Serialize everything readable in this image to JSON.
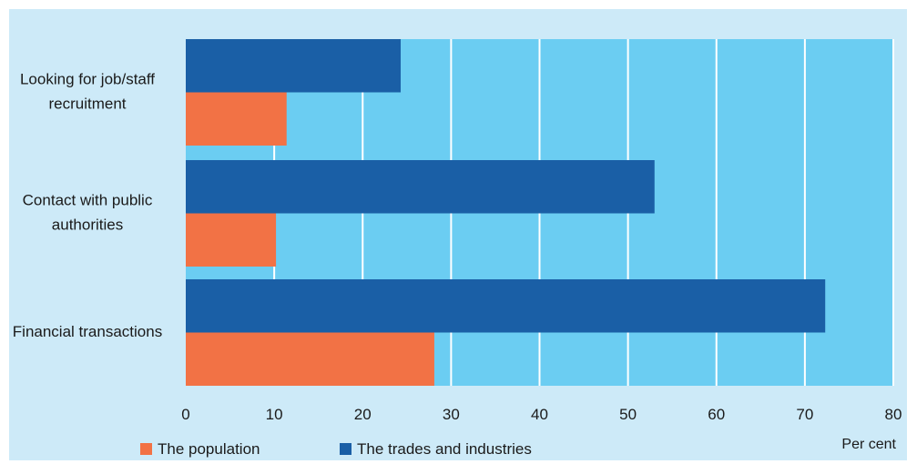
{
  "colors": {
    "outer_background": "#cdeaf8",
    "plot_background": "#6bcdf2",
    "gridline": "#ffffff",
    "population": "#f27245",
    "trades": "#1a5fa6",
    "text": "#1a1a1a"
  },
  "chart_data": {
    "type": "bar",
    "orientation": "horizontal",
    "categories": [
      "Looking for job/staff recruitment",
      "Contact with public authorities",
      "Financial transactions"
    ],
    "category_label_lines": [
      [
        "Looking for job/staff",
        "recruitment"
      ],
      [
        "Contact with public",
        "authorities"
      ],
      [
        "Financial transactions"
      ]
    ],
    "series": [
      {
        "name": "The trades and industries",
        "color": "#1a5fa6",
        "values": [
          24.3,
          53,
          72.3
        ]
      },
      {
        "name": "The population",
        "color": "#f27245",
        "values": [
          11.4,
          10.2,
          28.1
        ]
      }
    ],
    "xlabel": "Per cent",
    "ylabel": "",
    "xlim": [
      0,
      80
    ],
    "ticks": [
      0,
      10,
      20,
      30,
      40,
      50,
      60,
      70,
      80
    ],
    "grid": true,
    "legend": {
      "placement": "bottom-left",
      "order": [
        "The population",
        "The trades and industries"
      ]
    }
  }
}
